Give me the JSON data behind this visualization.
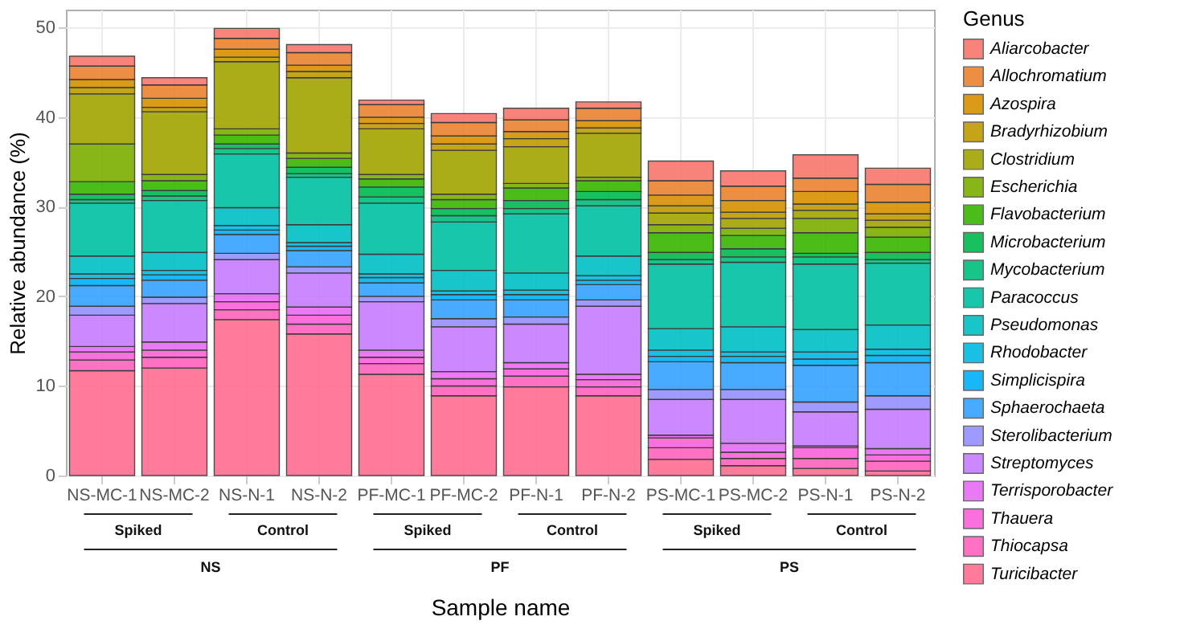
{
  "chart_data": {
    "type": "bar",
    "stacked": true,
    "xlabel": "Sample name",
    "ylabel": "Relative abundance (%)",
    "legend_title": "Genus",
    "legend": "right",
    "grid": true,
    "categories": [
      "NS-MC-1",
      "NS-MC-2",
      "NS-N-1",
      "NS-N-2",
      "PF-MC-1",
      "PF-MC-2",
      "PF-N-1",
      "PF-N-2",
      "PS-MC-1",
      "PS-MC-2",
      "PS-N-1",
      "PS-N-2"
    ],
    "ylim": [
      0,
      52
    ],
    "yticks": [
      0,
      10,
      20,
      30,
      40,
      50
    ],
    "annotations": [
      "Spiked",
      "Control",
      "Spiked",
      "Control",
      "Spiked",
      "Control",
      "NS",
      "PF",
      "PS"
    ],
    "series": [
      {
        "name": "Turicibacter",
        "color": "#ff6c91",
        "values": [
          11.7,
          12.0,
          17.4,
          15.8,
          11.3,
          8.9,
          9.9,
          8.9,
          1.8,
          1.1,
          0.8,
          0.5
        ]
      },
      {
        "name": "Thiocapsa",
        "color": "#ff62bc",
        "values": [
          1.2,
          1.2,
          1.1,
          1.1,
          1.2,
          1.1,
          1.2,
          1.0,
          1.3,
          0.8,
          1.1,
          1.1
        ]
      },
      {
        "name": "Thauera",
        "color": "#fa62db",
        "values": [
          0.9,
          0.8,
          0.9,
          1.0,
          0.7,
          0.8,
          0.8,
          0.8,
          1.1,
          0.7,
          1.2,
          0.7
        ]
      },
      {
        "name": "Terrisporobacter",
        "color": "#e76bf3",
        "values": [
          0.6,
          0.9,
          0.9,
          0.9,
          0.8,
          0.8,
          0.7,
          0.6,
          0.3,
          1.0,
          0.2,
          0.7
        ]
      },
      {
        "name": "Streptomyces",
        "color": "#c77cff",
        "values": [
          3.5,
          4.3,
          3.8,
          3.8,
          5.4,
          5.0,
          4.3,
          7.6,
          4.0,
          4.9,
          3.8,
          4.4
        ]
      },
      {
        "name": "Sterolibacterium",
        "color": "#9590ff",
        "values": [
          1.0,
          0.7,
          0.7,
          0.7,
          0.6,
          0.9,
          0.8,
          0.7,
          1.1,
          1.1,
          1.1,
          1.5
        ]
      },
      {
        "name": "Sphaerochaeta",
        "color": "#35a2ff",
        "values": [
          2.3,
          1.9,
          2.1,
          1.8,
          1.5,
          2.1,
          1.9,
          1.7,
          3.1,
          3.0,
          4.1,
          3.7
        ]
      },
      {
        "name": "Simplicispira",
        "color": "#00b0f6",
        "values": [
          0.8,
          0.6,
          0.5,
          0.5,
          0.6,
          0.6,
          0.6,
          0.5,
          0.6,
          0.7,
          0.7,
          0.8
        ]
      },
      {
        "name": "Rhodobacter",
        "color": "#00bae0",
        "values": [
          0.5,
          0.5,
          0.5,
          0.4,
          0.4,
          0.4,
          0.5,
          0.5,
          0.7,
          0.5,
          0.8,
          0.7
        ]
      },
      {
        "name": "Pseudomonas",
        "color": "#00bfc4",
        "values": [
          2.0,
          2.0,
          2.0,
          2.0,
          2.2,
          2.3,
          1.9,
          2.2,
          2.4,
          2.8,
          2.5,
          2.7
        ]
      },
      {
        "name": "Paracoccus",
        "color": "#00c1a3",
        "values": [
          5.9,
          5.8,
          6.0,
          5.3,
          5.7,
          5.4,
          6.6,
          5.6,
          7.2,
          7.2,
          7.3,
          6.9
        ]
      },
      {
        "name": "Mycobacterium",
        "color": "#00bf7d",
        "values": [
          0.4,
          0.5,
          0.6,
          0.4,
          0.7,
          0.7,
          0.6,
          0.7,
          0.5,
          0.6,
          0.8,
          0.4
        ]
      },
      {
        "name": "Microbacterium",
        "color": "#00bb4e",
        "values": [
          0.6,
          0.6,
          0.5,
          0.7,
          1.1,
          0.8,
          0.9,
          0.9,
          0.8,
          0.9,
          0.4,
          0.8
        ]
      },
      {
        "name": "Flavobacterium",
        "color": "#39b600",
        "values": [
          1.4,
          1.1,
          1.0,
          1.0,
          0.9,
          1.0,
          1.4,
          1.2,
          2.2,
          1.5,
          2.3,
          1.7
        ]
      },
      {
        "name": "Escherichia",
        "color": "#7cae00",
        "values": [
          4.2,
          0.7,
          0.7,
          0.6,
          0.5,
          0.6,
          0.5,
          0.4,
          0.9,
          0.8,
          1.6,
          1.1
        ]
      },
      {
        "name": "Clostridium",
        "color": "#a3a500",
        "values": [
          5.6,
          7.0,
          7.5,
          8.4,
          5.1,
          4.9,
          4.1,
          4.9,
          1.3,
          1.1,
          0.9,
          0.8
        ]
      },
      {
        "name": "Bradyrhizobium",
        "color": "#c09b00",
        "values": [
          0.7,
          0.5,
          0.5,
          0.7,
          0.6,
          0.7,
          0.9,
          0.6,
          0.8,
          0.7,
          0.7,
          0.7
        ]
      },
      {
        "name": "Azospira",
        "color": "#d89000",
        "values": [
          0.9,
          1.0,
          0.9,
          0.7,
          0.7,
          0.9,
          0.8,
          0.8,
          1.2,
          1.3,
          1.4,
          1.3
        ]
      },
      {
        "name": "Allochromatium",
        "color": "#ea8331",
        "values": [
          1.5,
          1.5,
          1.2,
          1.4,
          1.4,
          1.5,
          1.3,
          1.4,
          1.6,
          1.6,
          1.5,
          2.0
        ]
      },
      {
        "name": "Aliarcobacter",
        "color": "#f8766d",
        "values": [
          1.1,
          0.8,
          1.1,
          0.9,
          0.5,
          1.0,
          1.3,
          0.7,
          2.2,
          1.7,
          2.6,
          1.8
        ]
      }
    ]
  }
}
